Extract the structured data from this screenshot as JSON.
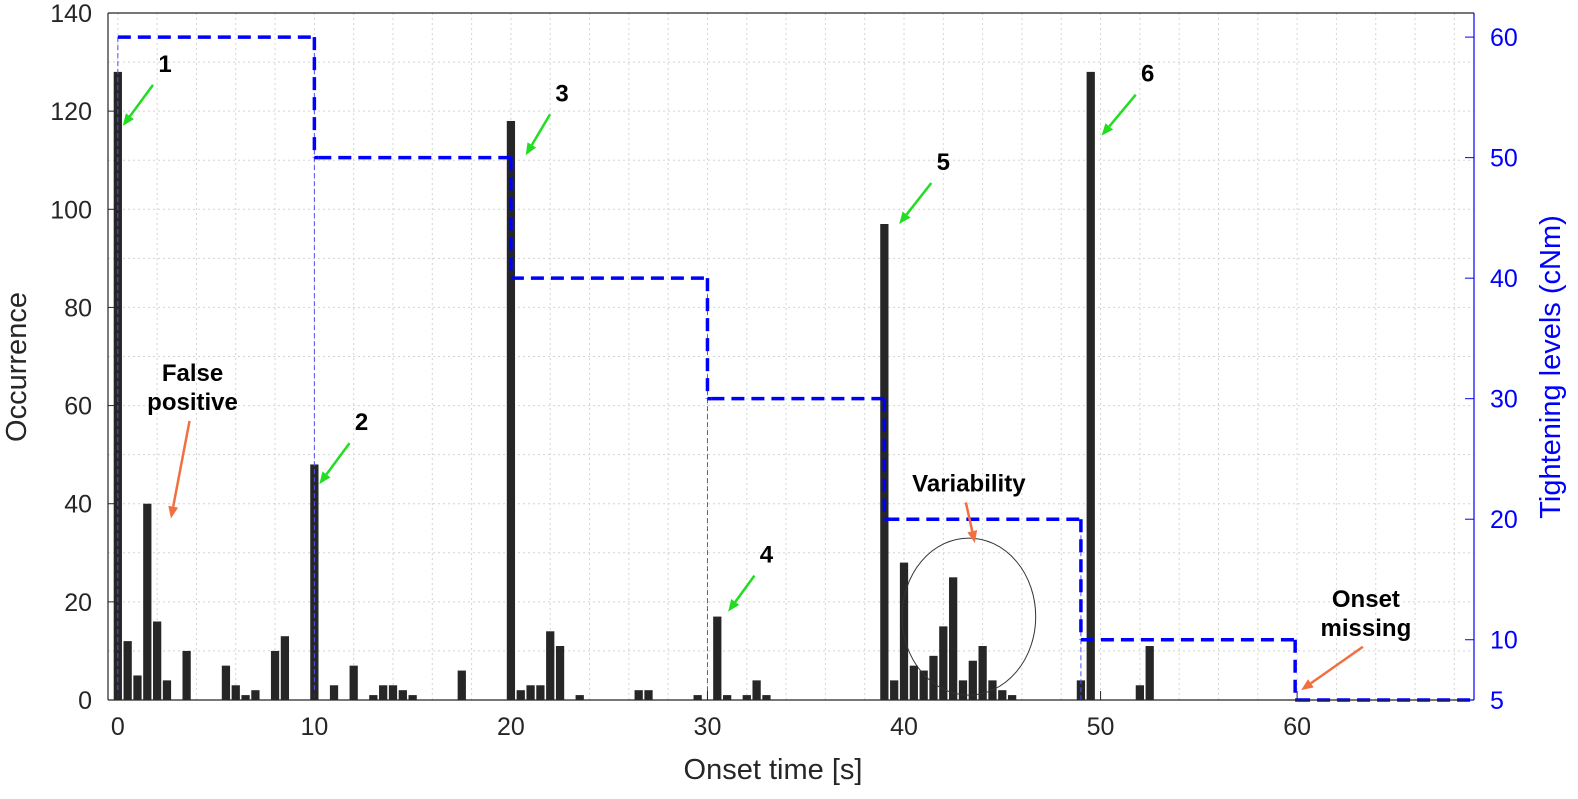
{
  "chart_data": {
    "type": "bar",
    "xlabel": "Onset time [s]",
    "ylabel": "Occurrence",
    "ylabel_right": "Tightening levels (cNm)",
    "xlim": [
      -0.5,
      69
    ],
    "ylim": [
      0,
      140
    ],
    "ylim_right": [
      5,
      62
    ],
    "xticks": [
      0,
      10,
      20,
      30,
      40,
      50,
      60
    ],
    "yticks": [
      0,
      20,
      40,
      60,
      80,
      100,
      120,
      140
    ],
    "yticks_right": [
      5,
      10,
      20,
      30,
      40,
      50,
      60
    ],
    "grid": true,
    "bar_width": 0.42,
    "bars": {
      "x": [
        0.0,
        0.5,
        1.0,
        1.5,
        2.0,
        2.5,
        3.5,
        5.5,
        6.0,
        6.5,
        7.0,
        8.0,
        8.5,
        10.0,
        11.0,
        12.0,
        13.0,
        13.5,
        14.0,
        14.5,
        15.0,
        17.5,
        20.0,
        20.5,
        21.0,
        21.5,
        22.0,
        22.5,
        23.5,
        26.5,
        27.0,
        29.5,
        30.5,
        31.0,
        32.0,
        32.5,
        33.0,
        39.0,
        39.5,
        40.0,
        40.5,
        41.0,
        41.5,
        42.0,
        42.5,
        43.0,
        43.5,
        44.0,
        44.5,
        45.0,
        45.5,
        49.0,
        49.5,
        52.0,
        52.5
      ],
      "values": [
        128,
        12,
        5,
        40,
        16,
        4,
        10,
        7,
        3,
        1,
        2,
        10,
        13,
        48,
        3,
        7,
        1,
        3,
        3,
        2,
        1,
        6,
        118,
        2,
        3,
        3,
        14,
        11,
        1,
        2,
        2,
        1,
        17,
        1,
        1,
        4,
        1,
        97,
        4,
        28,
        7,
        6,
        9,
        15,
        25,
        4,
        8,
        11,
        4,
        2,
        1,
        4,
        128,
        3,
        11
      ]
    },
    "step_series": {
      "name": "Tightening levels (cNm)",
      "color": "#0000ff",
      "steps": [
        {
          "x0": 0.0,
          "x1": 10.0,
          "level": 60
        },
        {
          "x0": 10.2,
          "x1": 20.0,
          "level": 50
        },
        {
          "x0": 20.0,
          "x1": 30.0,
          "level": 40
        },
        {
          "x0": 30.2,
          "x1": 39.0,
          "level": 30
        },
        {
          "x0": 39.1,
          "x1": 49.0,
          "level": 20
        },
        {
          "x0": 49.0,
          "x1": 59.9,
          "level": 10
        },
        {
          "x0": 60.0,
          "x1": 69.0,
          "level": 5
        }
      ]
    },
    "green_annotations": [
      {
        "label": "1",
        "x": 0.1,
        "y": 117,
        "text_x": 2.4,
        "text_y": 128
      },
      {
        "label": "2",
        "x": 10.1,
        "y": 44,
        "text_x": 12.4,
        "text_y": 55
      },
      {
        "label": "3",
        "x": 20.6,
        "y": 111,
        "text_x": 22.6,
        "text_y": 122
      },
      {
        "label": "4",
        "x": 30.9,
        "y": 18,
        "text_x": 33.0,
        "text_y": 28
      },
      {
        "label": "5",
        "x": 39.6,
        "y": 97,
        "text_x": 42.0,
        "text_y": 108
      },
      {
        "label": "6",
        "x": 49.9,
        "y": 115,
        "text_x": 52.4,
        "text_y": 126
      }
    ],
    "orange_annotations": [
      {
        "lines": [
          "False",
          "positive"
        ],
        "x": 2.5,
        "y": 37,
        "text_x": 3.8,
        "text_y": 65
      },
      {
        "lines": [
          "Variability"
        ],
        "x": 43.4,
        "y": 32,
        "text_x": 43.3,
        "text_y": 42.5
      },
      {
        "lines": [
          "Onset",
          "missing"
        ],
        "x": 60.0,
        "y": 2,
        "text_x": 63.5,
        "text_y": 19
      }
    ],
    "highlight_ellipse": {
      "cx": 43.3,
      "cy": 17,
      "rx": 3.4,
      "ry": 16
    }
  }
}
